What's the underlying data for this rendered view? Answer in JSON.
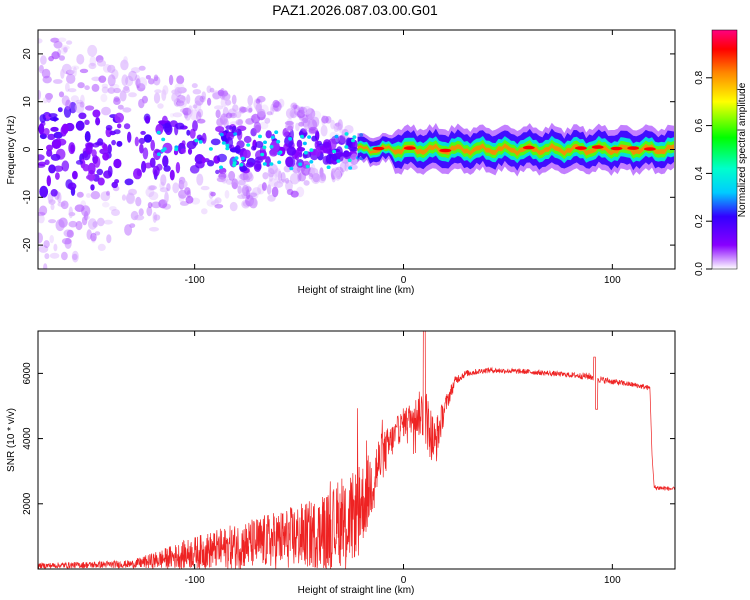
{
  "title": "PAZ1.2026.087.03.00.G01",
  "colors": {
    "snr_line": "#ee2222",
    "background": "#ffffff",
    "axis": "#000000"
  },
  "chart_data": [
    {
      "type": "heatmap",
      "name": "spectrogram",
      "xlabel": "Height of straight line (km)",
      "ylabel": "Frequency (Hz)",
      "xlim": [
        -175,
        130
      ],
      "ylim": [
        -25,
        25
      ],
      "xticks": [
        -100,
        0,
        100
      ],
      "xtick_labels": [
        "-100",
        "0",
        "100"
      ],
      "yticks": [
        -20,
        -10,
        0,
        10,
        20
      ],
      "ytick_labels": [
        "-20",
        "-10",
        "0",
        "10",
        "20"
      ],
      "ridge": {
        "description_values": "dominant frequency near 0 Hz",
        "x": [
          -175,
          -100,
          -50,
          -20,
          0,
          50,
          100,
          130
        ],
        "center_hz": [
          0,
          0,
          0,
          0,
          0,
          0,
          0,
          0
        ],
        "half_width_hz": [
          22,
          12,
          8,
          3,
          1.5,
          1.5,
          1.5,
          1.5
        ],
        "amplitude": [
          0.05,
          0.15,
          0.2,
          0.5,
          0.6,
          0.65,
          0.7,
          0.7
        ]
      },
      "colorbar": {
        "label": "Normalized spectral amplitude",
        "range": [
          0,
          1
        ],
        "ticks": [
          0.0,
          0.2,
          0.4,
          0.6,
          0.8
        ],
        "tick_labels": [
          "0.0",
          "0.2",
          "0.4",
          "0.6",
          "0.8"
        ]
      }
    },
    {
      "type": "line",
      "name": "snr",
      "xlabel": "Height of straight line (km)",
      "ylabel": "SNR (10 * v/v)",
      "xlim": [
        -175,
        130
      ],
      "ylim": [
        0,
        7300
      ],
      "xticks": [
        -100,
        0,
        100
      ],
      "xtick_labels": [
        "-100",
        "0",
        "100"
      ],
      "yticks": [
        2000,
        4000,
        6000
      ],
      "ytick_labels": [
        "2000",
        "4000",
        "6000"
      ],
      "series": [
        {
          "name": "SNR",
          "x": [
            -175,
            -130,
            -120,
            -100,
            -80,
            -60,
            -40,
            -25,
            -18,
            -12,
            -5,
            0,
            5,
            10,
            15,
            20,
            25,
            30,
            40,
            60,
            80,
            90,
            95,
            110,
            118,
            119,
            120,
            130
          ],
          "mean": [
            100,
            150,
            250,
            500,
            700,
            900,
            1100,
            1500,
            2200,
            3200,
            4000,
            4500,
            4700,
            4800,
            3800,
            5000,
            5800,
            6000,
            6100,
            6050,
            5950,
            5900,
            5800,
            5650,
            5550,
            3500,
            2500,
            2450
          ],
          "spread": [
            80,
            120,
            250,
            500,
            700,
            900,
            1100,
            1400,
            1200,
            900,
            500,
            450,
            500,
            900,
            800,
            300,
            150,
            100,
            80,
            80,
            80,
            120,
            100,
            80,
            80,
            0,
            80,
            60
          ]
        }
      ]
    }
  ]
}
